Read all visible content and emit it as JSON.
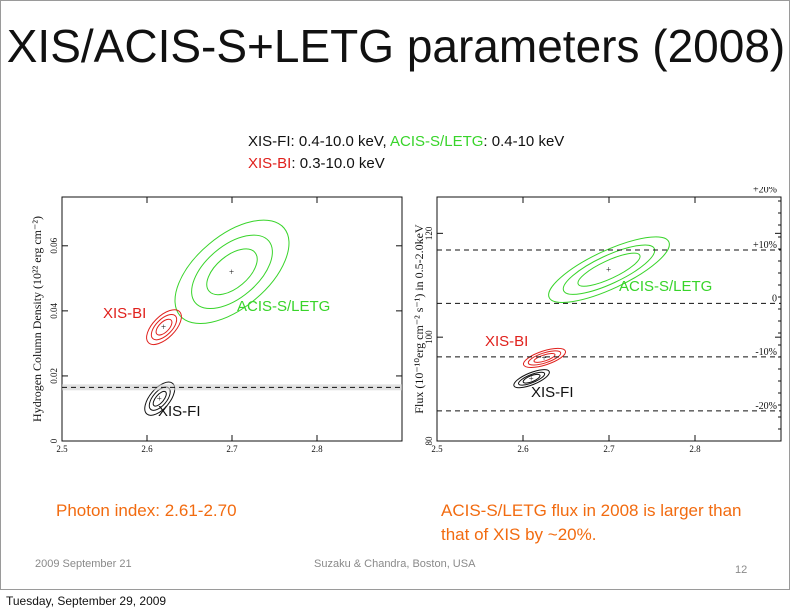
{
  "slide": {
    "title": "XIS/ACIS-S+LETG parameters (2008)",
    "bands": {
      "xis_fi_label": "XIS-FI",
      "xis_fi_range": ": 0.4-10.0 keV, ",
      "acis_label": "ACIS-S/LETG",
      "acis_range": ": 0.4-10 keV",
      "xis_bi_label": "XIS-BI",
      "xis_bi_range": ": 0.3-10.0 keV"
    },
    "left_caption": "Photon index: 2.61-2.70",
    "right_caption_line1": "ACIS-S/LETG flux in 2008 is larger than",
    "right_caption_line2": "that of XIS by ~20%.",
    "footer_date": "2009 September 21",
    "footer_center": "Suzaku & Chandra, Boston, USA",
    "page_number": "12",
    "bottom_date": "Tuesday, September 29, 2009"
  },
  "chart_data": [
    {
      "type": "scatter",
      "title": "",
      "xlabel": "",
      "ylabel": "Hydrogen Column Density (10^22 erg cm^-2)",
      "xlim": [
        2.5,
        2.9
      ],
      "ylim": [
        0,
        0.075
      ],
      "xticks": [
        "2.5",
        "2.6",
        "2.7",
        "2.8"
      ],
      "yticks": [
        "0",
        "0.02",
        "0.04",
        "0.06"
      ],
      "series": [
        {
          "name": "ACIS-S/LETG",
          "color": "#38d42a",
          "center": [
            2.7,
            0.052
          ]
        },
        {
          "name": "XIS-BI",
          "color": "#e0201c",
          "center": [
            2.62,
            0.035
          ]
        },
        {
          "name": "XIS-FI",
          "color": "#111111",
          "center": [
            2.615,
            0.013
          ]
        }
      ],
      "reference_line": 0.0165
    },
    {
      "type": "scatter",
      "title": "",
      "xlabel": "",
      "ylabel": "Flux (10^-10 erg cm^-2 s^-1) in 0.5-2.0keV",
      "xlim": [
        2.5,
        2.9
      ],
      "ylim": [
        80,
        127
      ],
      "xticks": [
        "2.5",
        "2.6",
        "2.7",
        "2.8"
      ],
      "yticks": [
        "80",
        "100",
        "120"
      ],
      "series": [
        {
          "name": "ACIS-S/LETG",
          "color": "#38d42a",
          "center": [
            2.7,
            113
          ]
        },
        {
          "name": "XIS-BI",
          "color": "#e0201c",
          "center": [
            2.625,
            96
          ]
        },
        {
          "name": "XIS-FI",
          "color": "#111111",
          "center": [
            2.61,
            92
          ]
        }
      ],
      "percent_lines": [
        "+20%",
        "+10%",
        "0",
        "-10%",
        "-20%"
      ]
    }
  ]
}
